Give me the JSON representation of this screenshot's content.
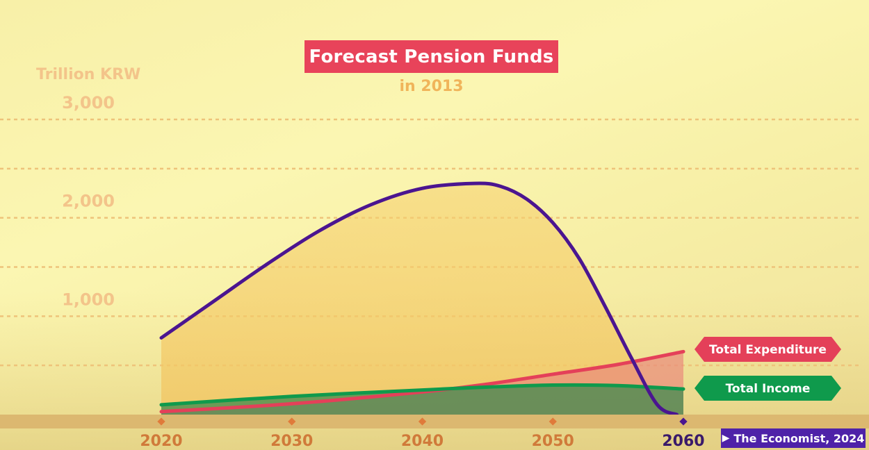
{
  "chart_data": {
    "type": "area",
    "title": "Forecast Pension Funds",
    "subtitle": "in 2013",
    "ylabel": "Trillion KRW",
    "xlabel": "",
    "x_ticks": [
      "2020",
      "2030",
      "2040",
      "2050",
      "2060"
    ],
    "y_ticks": [
      "1,000",
      "2,000",
      "3,000"
    ],
    "xlim": [
      2020,
      2060
    ],
    "ylim": [
      0,
      3000
    ],
    "grid": "dashed horizontal",
    "series": [
      {
        "name": "",
        "color": "#4b1590",
        "x": [
          2020,
          2024,
          2028,
          2032,
          2036,
          2040,
          2044,
          2046,
          2048,
          2050,
          2052,
          2054,
          2056,
          2058,
          2059.5
        ],
        "values": [
          780,
          1150,
          1520,
          1860,
          2130,
          2300,
          2350,
          2320,
          2190,
          1950,
          1590,
          1100,
          580,
          100,
          0
        ]
      },
      {
        "name": "Total Expenditure",
        "color": "#e44059",
        "x": [
          2020,
          2030,
          2040,
          2045,
          2050,
          2055,
          2060
        ],
        "values": [
          30,
          110,
          230,
          310,
          410,
          510,
          640
        ]
      },
      {
        "name": "Total Income",
        "color": "#0f9a4c",
        "x": [
          2020,
          2030,
          2040,
          2045,
          2050,
          2055,
          2060
        ],
        "values": [
          100,
          185,
          250,
          280,
          300,
          295,
          260
        ]
      }
    ],
    "source": "The Economist, 2024"
  }
}
